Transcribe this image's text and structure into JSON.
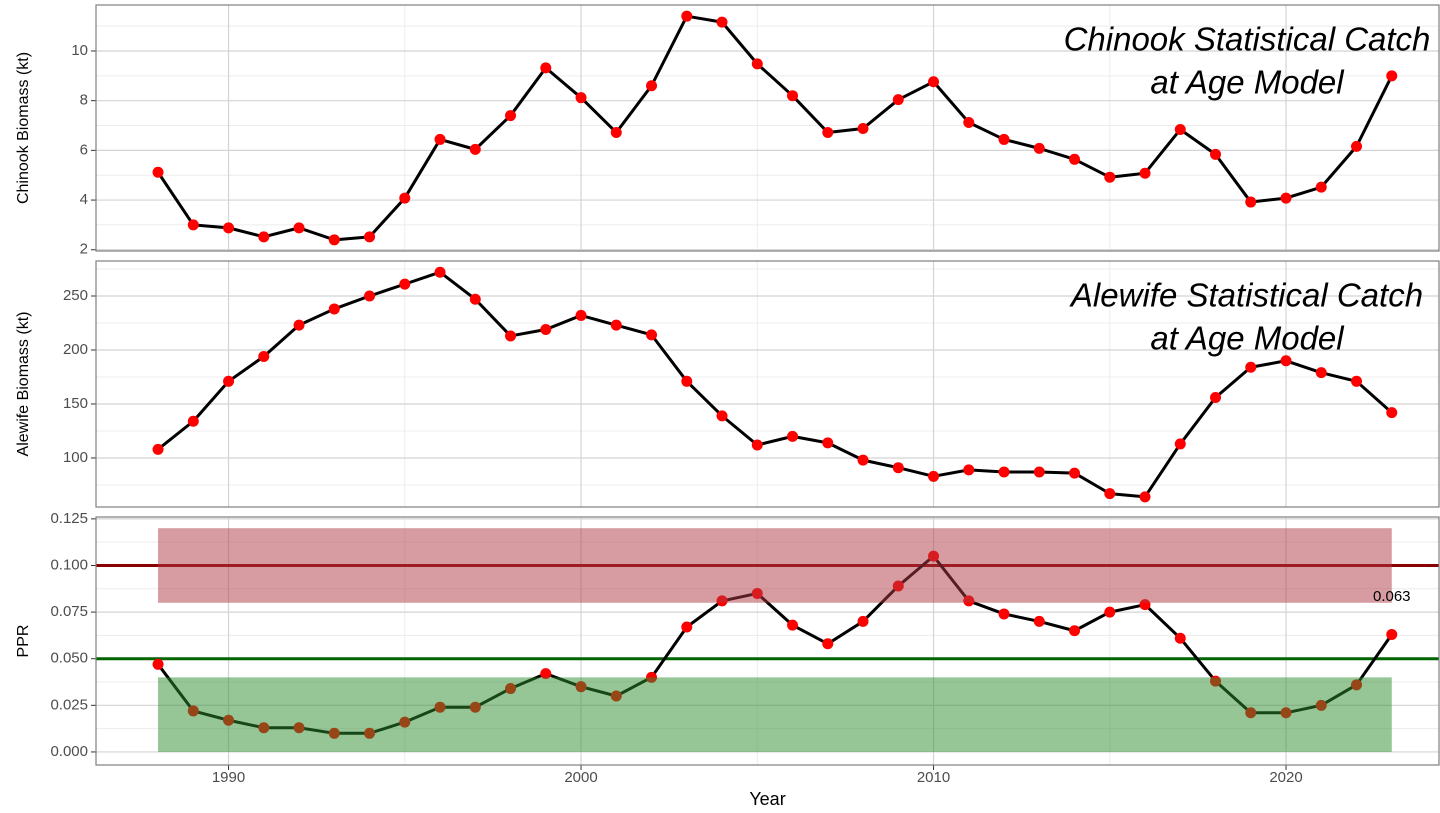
{
  "chart_data": [
    {
      "type": "line",
      "title_lines": [
        "Chinook Statistical Catch",
        "at Age Model"
      ],
      "ylabel": "Chinook Biomass (kt)",
      "x": [
        1988,
        1989,
        1990,
        1991,
        1992,
        1993,
        1994,
        1995,
        1996,
        1997,
        1998,
        1999,
        2000,
        2001,
        2002,
        2003,
        2004,
        2005,
        2006,
        2007,
        2008,
        2009,
        2010,
        2011,
        2012,
        2013,
        2014,
        2015,
        2016,
        2017,
        2018,
        2019,
        2020,
        2021,
        2022,
        2023
      ],
      "xlim": [
        1986.24,
        2024.34
      ],
      "xticks": [
        1990,
        2000,
        2010,
        2020
      ],
      "ylim": [
        1.95,
        11.85
      ],
      "yticks": [
        2,
        4,
        6,
        8,
        10
      ],
      "grid": true,
      "series": [
        {
          "color": "#000000",
          "marker_color": "#ff0000",
          "values": [
            5.12,
            3.0,
            2.88,
            2.52,
            2.88,
            2.4,
            2.52,
            4.08,
            6.44,
            6.04,
            7.4,
            9.32,
            8.12,
            6.72,
            8.6,
            11.4,
            11.16,
            9.48,
            8.2,
            6.72,
            6.88,
            8.04,
            8.76,
            7.12,
            6.44,
            6.08,
            5.64,
            4.92,
            5.08,
            6.84,
            5.84,
            3.92,
            4.08,
            4.52,
            6.16,
            9.0
          ]
        }
      ]
    },
    {
      "type": "line",
      "title_lines": [
        "Alewife Statistical Catch",
        "at Age Model"
      ],
      "ylabel": "Alewife Biomass (kt)",
      "x": [
        1988,
        1989,
        1990,
        1991,
        1992,
        1993,
        1994,
        1995,
        1996,
        1997,
        1998,
        1999,
        2000,
        2001,
        2002,
        2003,
        2004,
        2005,
        2006,
        2007,
        2008,
        2009,
        2010,
        2011,
        2012,
        2013,
        2014,
        2015,
        2016,
        2017,
        2018,
        2019,
        2020,
        2021,
        2022,
        2023
      ],
      "xlim": [
        1986.24,
        2024.34
      ],
      "xticks": [
        1990,
        2000,
        2010,
        2020
      ],
      "ylim": [
        54.6,
        282.4
      ],
      "yticks": [
        100,
        150,
        200,
        250
      ],
      "grid": true,
      "series": [
        {
          "color": "#000000",
          "marker_color": "#ff0000",
          "values": [
            108,
            134,
            171,
            194,
            223,
            238,
            250,
            261,
            272,
            247,
            213,
            219,
            232,
            223,
            214,
            171,
            139,
            112,
            120,
            114,
            98,
            91,
            83,
            89,
            87,
            87,
            86,
            67,
            64,
            113,
            156,
            184,
            190,
            179,
            171,
            142
          ]
        }
      ]
    },
    {
      "type": "line",
      "ylabel": "PPR",
      "xlabel": "Year",
      "x": [
        1988,
        1989,
        1990,
        1991,
        1992,
        1993,
        1994,
        1995,
        1996,
        1997,
        1998,
        1999,
        2000,
        2001,
        2002,
        2003,
        2004,
        2005,
        2006,
        2007,
        2008,
        2009,
        2010,
        2011,
        2012,
        2013,
        2014,
        2015,
        2016,
        2017,
        2018,
        2019,
        2020,
        2021,
        2022,
        2023
      ],
      "xlim": [
        1986.24,
        2024.34
      ],
      "xticks": [
        1990,
        2000,
        2010,
        2020
      ],
      "ylim": [
        -0.007,
        0.126
      ],
      "yticks": [
        {
          "value": 0,
          "label": "0.000"
        },
        0.025,
        {
          "value": 0.05,
          "label": "0.050"
        },
        0.075,
        {
          "value": 0.1,
          "label": "0.100"
        },
        0.125
      ],
      "grid": true,
      "series": [
        {
          "color": "#000000",
          "marker_color": "#ff0000",
          "values": [
            0.047,
            0.022,
            0.017,
            0.013,
            0.013,
            0.01,
            0.01,
            0.016,
            0.024,
            0.024,
            0.034,
            0.042,
            0.035,
            0.03,
            0.04,
            0.067,
            0.081,
            0.085,
            0.068,
            0.058,
            0.07,
            0.089,
            0.105,
            0.081,
            0.074,
            0.07,
            0.065,
            0.075,
            0.079,
            0.061,
            0.038,
            0.021,
            0.021,
            0.025,
            0.036,
            0.063
          ]
        }
      ],
      "bands": [
        {
          "lower": 0.08,
          "upper": 0.12,
          "xrange": [
            1988,
            2023
          ],
          "color": "#b03a44"
        },
        {
          "lower": 0,
          "upper": 0.04,
          "xrange": [
            1988,
            2023
          ],
          "color": "#2e8b2e"
        }
      ],
      "hlines": [
        {
          "y": 0.1,
          "color": "#8b0000"
        },
        {
          "y": 0.05,
          "color": "#006400"
        }
      ],
      "annotations": [
        {
          "text": "0.063",
          "x": 2023,
          "y": 0.083
        }
      ]
    }
  ]
}
